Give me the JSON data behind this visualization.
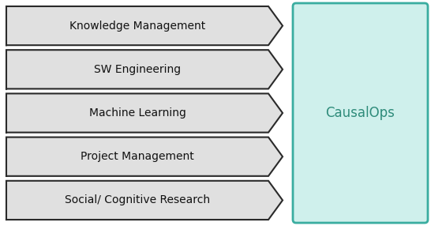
{
  "labels": [
    "Knowledge Management",
    "SW Engineering",
    "Machine Learning",
    "Project Management",
    "Social/ Cognitive Research"
  ],
  "arrow_fill_color": "#e0e0e0",
  "arrow_edge_color": "#2a2a2a",
  "box_fill_color": "#cff0ec",
  "box_edge_color": "#3aada0",
  "box_text": "CausalOps",
  "box_text_color": "#2e8b7a",
  "label_color": "#111111",
  "fig_width": 5.46,
  "fig_height": 2.86,
  "dpi": 100
}
